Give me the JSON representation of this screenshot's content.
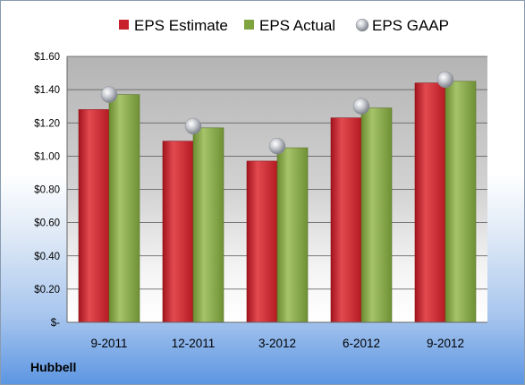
{
  "chart_data": {
    "type": "bar",
    "categories": [
      "9-2011",
      "12-2011",
      "3-2012",
      "6-2012",
      "9-2012"
    ],
    "series": [
      {
        "name": "EPS Estimate",
        "values": [
          1.28,
          1.09,
          0.97,
          1.23,
          1.44
        ],
        "color": "#c8202a"
      },
      {
        "name": "EPS Actual",
        "values": [
          1.37,
          1.17,
          1.05,
          1.29,
          1.45
        ],
        "color": "#7ea33f"
      },
      {
        "name": "EPS GAAP",
        "values": [
          1.37,
          1.18,
          1.06,
          1.3,
          1.46
        ],
        "marker": "sphere",
        "color": "#b9bcc3"
      }
    ],
    "ylim": [
      0,
      1.6
    ],
    "yticks": [
      0,
      0.2,
      0.4,
      0.6,
      0.8,
      1.0,
      1.2,
      1.4,
      1.6
    ],
    "ytick_labels": [
      "$-",
      "$0.20",
      "$0.40",
      "$0.60",
      "$0.80",
      "$1.00",
      "$1.20",
      "$1.40",
      "$1.60"
    ],
    "grid": true,
    "legend_position": "top"
  },
  "company": "Hubbell"
}
